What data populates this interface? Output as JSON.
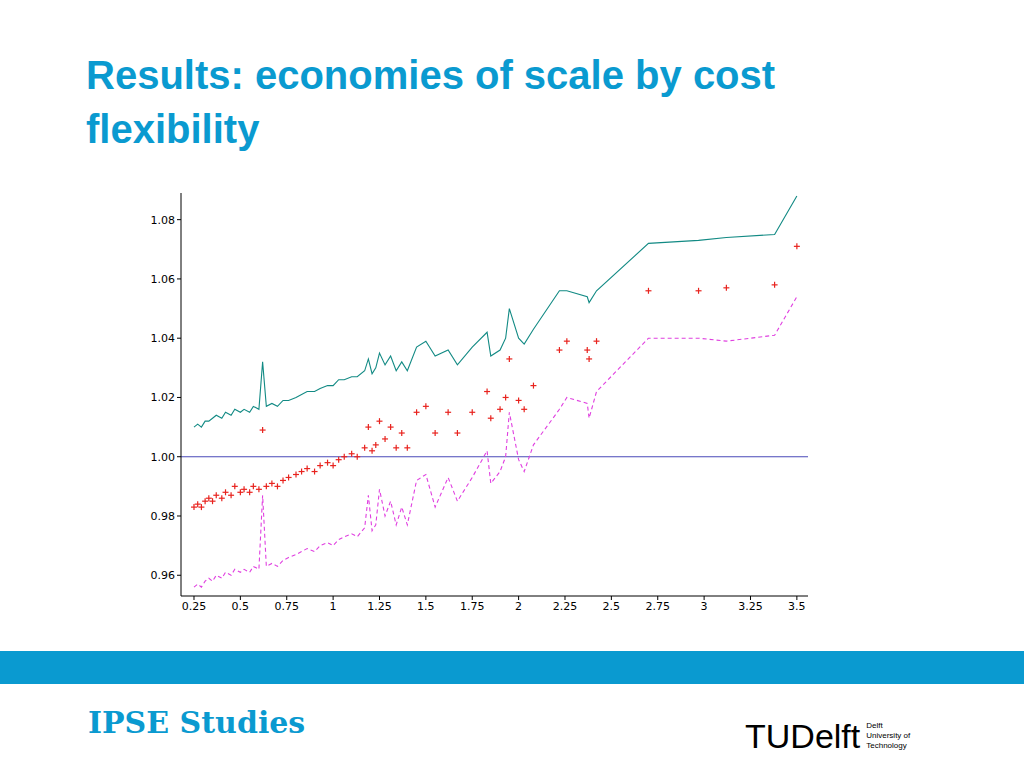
{
  "slide": {
    "title": "Results: economies of scale by cost flexibility",
    "footer": "IPSE Studies",
    "logo": {
      "name": "TUDelft",
      "subtitle": [
        "Delft",
        "University of",
        "Technology"
      ]
    }
  },
  "chart_data": {
    "type": "scatter",
    "x": [
      0.25,
      0.27,
      0.29,
      0.31,
      0.33,
      0.35,
      0.37,
      0.4,
      0.42,
      0.45,
      0.47,
      0.5,
      0.52,
      0.55,
      0.57,
      0.6,
      0.62,
      0.64,
      0.67,
      0.7,
      0.73,
      0.76,
      0.8,
      0.83,
      0.86,
      0.9,
      0.93,
      0.97,
      1.0,
      1.03,
      1.06,
      1.1,
      1.13,
      1.17,
      1.19,
      1.21,
      1.23,
      1.25,
      1.28,
      1.31,
      1.34,
      1.37,
      1.4,
      1.45,
      1.5,
      1.55,
      1.62,
      1.67,
      1.75,
      1.83,
      1.85,
      1.9,
      1.93,
      1.95,
      2.0,
      2.03,
      2.08,
      2.22,
      2.26,
      2.37,
      2.38,
      2.42,
      2.7,
      2.97,
      3.12,
      3.38,
      3.5
    ],
    "series": [
      {
        "type": "scatter",
        "color": "#e8231e",
        "marker": "plus",
        "values": [
          0.983,
          0.984,
          0.983,
          0.985,
          0.986,
          0.985,
          0.987,
          0.986,
          0.988,
          0.987,
          0.99,
          0.988,
          0.989,
          0.988,
          0.99,
          0.989,
          1.009,
          0.99,
          0.991,
          0.99,
          0.992,
          0.993,
          0.994,
          0.995,
          0.996,
          0.995,
          0.997,
          0.998,
          0.997,
          0.999,
          1.0,
          1.001,
          1.0,
          1.003,
          1.01,
          1.002,
          1.004,
          1.012,
          1.006,
          1.01,
          1.003,
          1.008,
          1.003,
          1.015,
          1.017,
          1.008,
          1.015,
          1.008,
          1.015,
          1.022,
          1.013,
          1.016,
          1.02,
          1.033,
          1.019,
          1.016,
          1.024,
          1.036,
          1.039,
          1.036,
          1.033,
          1.039,
          1.056,
          1.056,
          1.057,
          1.058,
          1.071
        ]
      },
      {
        "type": "line",
        "color": "#128a84",
        "line_style": "solid",
        "values": [
          1.01,
          1.011,
          1.01,
          1.012,
          1.012,
          1.013,
          1.014,
          1.013,
          1.015,
          1.014,
          1.016,
          1.015,
          1.016,
          1.015,
          1.017,
          1.016,
          1.032,
          1.017,
          1.018,
          1.017,
          1.019,
          1.019,
          1.02,
          1.021,
          1.022,
          1.022,
          1.023,
          1.024,
          1.024,
          1.026,
          1.026,
          1.027,
          1.027,
          1.029,
          1.033,
          1.028,
          1.03,
          1.035,
          1.031,
          1.034,
          1.029,
          1.032,
          1.029,
          1.037,
          1.039,
          1.034,
          1.036,
          1.031,
          1.037,
          1.042,
          1.034,
          1.036,
          1.04,
          1.05,
          1.04,
          1.038,
          1.043,
          1.056,
          1.056,
          1.054,
          1.052,
          1.056,
          1.072,
          1.073,
          1.074,
          1.075,
          1.088
        ]
      },
      {
        "type": "line",
        "color": "#e040e0",
        "line_style": "dashed",
        "values": [
          0.956,
          0.957,
          0.956,
          0.958,
          0.959,
          0.958,
          0.96,
          0.959,
          0.961,
          0.96,
          0.962,
          0.961,
          0.962,
          0.961,
          0.963,
          0.962,
          0.987,
          0.963,
          0.964,
          0.963,
          0.965,
          0.966,
          0.967,
          0.968,
          0.969,
          0.968,
          0.97,
          0.971,
          0.97,
          0.972,
          0.973,
          0.974,
          0.973,
          0.976,
          0.987,
          0.975,
          0.977,
          0.989,
          0.98,
          0.985,
          0.977,
          0.983,
          0.977,
          0.992,
          0.994,
          0.983,
          0.993,
          0.985,
          0.993,
          1.002,
          0.991,
          0.995,
          1.0,
          1.015,
          0.999,
          0.995,
          1.004,
          1.016,
          1.02,
          1.018,
          1.013,
          1.022,
          1.04,
          1.04,
          1.039,
          1.041,
          1.054
        ]
      }
    ],
    "reference_line": {
      "y": 1,
      "color": "#4a4ab8"
    },
    "xlim": [
      0.18,
      3.56
    ],
    "ylim": [
      0.953,
      1.089
    ],
    "xticks": [
      0.25,
      0.5,
      0.75,
      1,
      1.25,
      1.5,
      1.75,
      2,
      2.25,
      2.5,
      2.75,
      3,
      3.25,
      3.5
    ],
    "yticks": [
      0.96,
      0.98,
      {
        "value": 1,
        "label": "1.00"
      },
      1.02,
      1.04,
      1.06,
      1.08
    ]
  }
}
